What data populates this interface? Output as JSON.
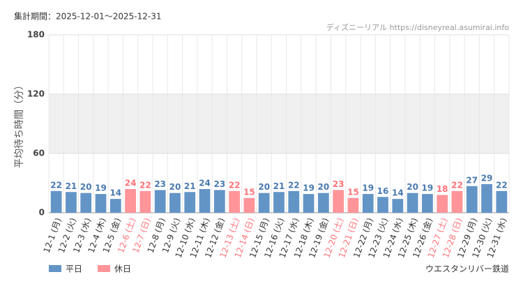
{
  "chart_data": {
    "type": "bar",
    "title": "集計期間：2025-12-01～2025-12-31",
    "source": "ディズニーリアル https://disneyreal.asumirai.info",
    "y_label": "平均待ち時間（分）",
    "footer": "ウエスタンリバー鉄道",
    "categories": [
      "12-1 (月)",
      "12-2 (火)",
      "12-3 (水)",
      "12-4 (木)",
      "12-5 (金)",
      "12-6 (土)",
      "12-7 (日)",
      "12-8 (月)",
      "12-9 (火)",
      "12-10 (水)",
      "12-11 (木)",
      "12-12 (金)",
      "12-13 (土)",
      "12-14 (日)",
      "12-15 (月)",
      "12-16 (火)",
      "12-17 (水)",
      "12-18 (木)",
      "12-19 (金)",
      "12-20 (土)",
      "12-21 (日)",
      "12-22 (月)",
      "12-23 (火)",
      "12-24 (水)",
      "12-25 (木)",
      "12-26 (金)",
      "12-27 (土)",
      "12-28 (日)",
      "12-29 (月)",
      "12-30 (火)",
      "12-31 (水)"
    ],
    "series": [
      {
        "name": "平日",
        "color": "#6394c6",
        "label_color": "#4a7ab0",
        "values": [
          22,
          21,
          20,
          19,
          14,
          null,
          null,
          23,
          20,
          21,
          24,
          23,
          null,
          null,
          20,
          21,
          22,
          19,
          20,
          null,
          null,
          19,
          16,
          14,
          20,
          19,
          null,
          null,
          27,
          29,
          22
        ]
      },
      {
        "name": "休日",
        "color": "#ff9499",
        "label_color": "#ff7379",
        "values": [
          null,
          null,
          null,
          null,
          null,
          24,
          22,
          null,
          null,
          null,
          null,
          null,
          22,
          15,
          null,
          null,
          null,
          null,
          null,
          23,
          15,
          null,
          null,
          null,
          null,
          null,
          18,
          22,
          null,
          null,
          null
        ]
      }
    ],
    "ylim": [
      0,
      180
    ],
    "yticks": [
      0,
      60,
      120,
      180
    ],
    "band": [
      60,
      120
    ],
    "grid": true
  }
}
